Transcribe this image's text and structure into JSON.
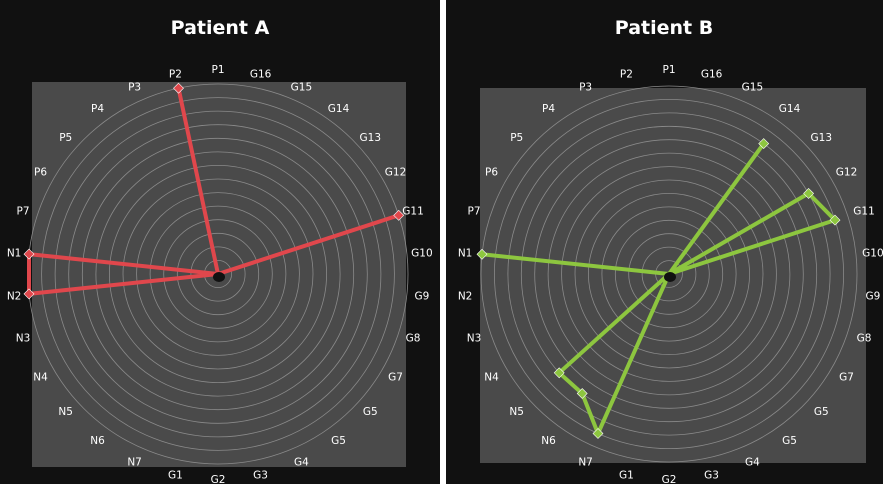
{
  "chart_data": [
    {
      "type": "radar",
      "title": "Patient A",
      "categories": [
        "P1",
        "G16",
        "G15",
        "G14",
        "G13",
        "G12",
        "G11",
        "G10",
        "G9",
        "G8",
        "G7",
        "G5",
        "G5",
        "G4",
        "G3",
        "G2",
        "G1",
        "N7",
        "N6",
        "N5",
        "N4",
        "N3",
        "N2",
        "N1",
        "P7",
        "P6",
        "P5",
        "P4",
        "P3",
        "P2"
      ],
      "rlim": [
        0,
        7
      ],
      "grid": true,
      "series": [
        {
          "color": "#e0474c",
          "values": [
            0,
            0,
            0,
            0,
            0,
            0,
            7,
            0,
            0,
            0,
            0,
            0,
            0,
            0,
            0,
            0,
            0,
            0,
            0,
            0,
            0,
            0,
            7,
            7,
            0,
            0,
            0,
            0,
            0,
            7
          ]
        }
      ]
    },
    {
      "type": "radar",
      "title": "Patient B",
      "categories": [
        "P1",
        "G16",
        "G15",
        "G14",
        "G13",
        "G12",
        "G11",
        "G10",
        "G9",
        "G8",
        "G7",
        "G5",
        "G5",
        "G4",
        "G3",
        "G2",
        "G1",
        "N7",
        "N6",
        "N5",
        "N4",
        "N3",
        "N2",
        "N1",
        "P7",
        "P6",
        "P5",
        "P4",
        "P3",
        "P2"
      ],
      "rlim": [
        0,
        7
      ],
      "grid": true,
      "series": [
        {
          "color": "#8dc63f",
          "values": [
            0,
            0,
            0,
            6,
            0,
            6,
            6.5,
            0,
            0,
            0,
            0,
            0,
            0,
            0,
            0,
            0,
            0,
            6.5,
            5.5,
            5.5,
            0,
            0,
            0,
            7,
            0,
            0,
            0,
            0,
            0,
            0
          ]
        }
      ]
    }
  ]
}
